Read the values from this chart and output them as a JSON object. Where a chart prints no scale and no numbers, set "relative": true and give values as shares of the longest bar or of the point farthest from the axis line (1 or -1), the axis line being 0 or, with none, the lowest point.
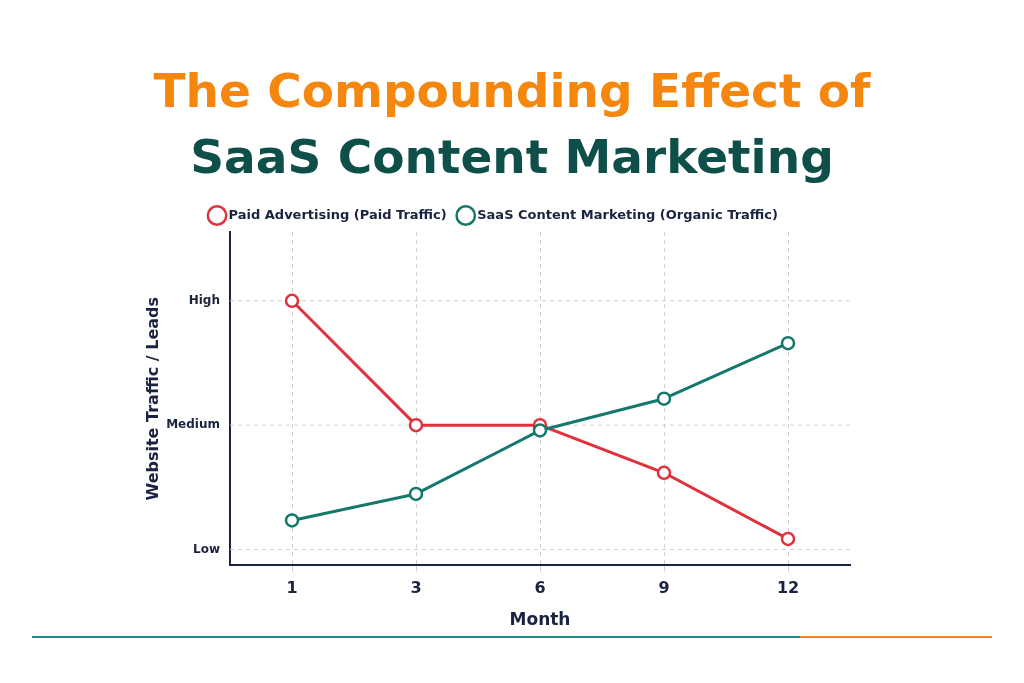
{
  "chart_data": {
    "type": "line",
    "title": "The Compounding Effect of SaaS Content Marketing",
    "xlabel": "Month",
    "ylabel": "Website Traffic / Leads",
    "categories": [
      "1",
      "3",
      "6",
      "9",
      "12"
    ],
    "series": [
      {
        "name": "Paid Advertising (Paid Traffic)",
        "color": "#e0323c",
        "values": [
          1,
          0.53,
          0.53,
          0.35,
          0.1
        ]
      },
      {
        "name": "SaaS Content Marketing (Organic Traffic)",
        "color": "#14786a",
        "values": [
          0.17,
          0.27,
          0.51,
          0.63,
          0.84
        ]
      }
    ],
    "relative": true,
    "ref_lines": [
      {
        "axis": "y",
        "value": 1,
        "label": "High"
      },
      {
        "axis": "y",
        "value": 0.53,
        "label": "Medium"
      },
      {
        "axis": "y",
        "value": 0.06,
        "label": "Low"
      }
    ],
    "grid": "x",
    "legend": "top",
    "marker": "circle",
    "line_style": "solid"
  }
}
